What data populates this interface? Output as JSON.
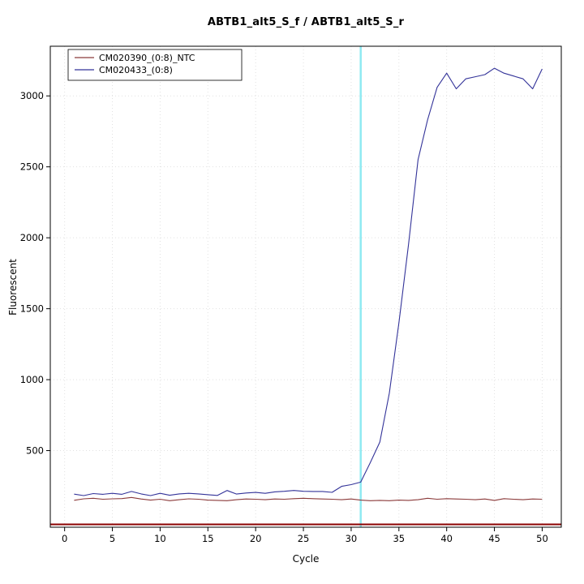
{
  "title": "ABTB1_alt5_S_f / ABTB1_alt5_S_r",
  "chart_data": {
    "type": "line",
    "title": "ABTB1_alt5_S_f / ABTB1_alt5_S_r",
    "xlabel": "Cycle",
    "ylabel": "Fluorescent",
    "xlim": [
      -1.5,
      52
    ],
    "ylim": [
      -40,
      3350
    ],
    "xticks": [
      0,
      5,
      10,
      15,
      20,
      25,
      30,
      35,
      40,
      45,
      50
    ],
    "yticks": [
      500,
      1000,
      1500,
      2000,
      2500,
      3000
    ],
    "grid": true,
    "legend_position": "top-left",
    "x": [
      1,
      2,
      3,
      4,
      5,
      6,
      7,
      8,
      9,
      10,
      11,
      12,
      13,
      14,
      15,
      16,
      17,
      18,
      19,
      20,
      21,
      22,
      23,
      24,
      25,
      26,
      27,
      28,
      29,
      30,
      31,
      32,
      33,
      34,
      35,
      36,
      37,
      38,
      39,
      40,
      41,
      42,
      43,
      44,
      45,
      46,
      47,
      48,
      49,
      50
    ],
    "series": [
      {
        "name": "CM020390_(0:8)_NTC",
        "color": "#8B3A3A",
        "values": [
          150,
          160,
          164,
          157,
          160,
          162,
          170,
          159,
          151,
          157,
          147,
          154,
          160,
          157,
          151,
          149,
          147,
          154,
          159,
          157,
          154,
          159,
          157,
          161,
          164,
          161,
          159,
          157,
          154,
          159,
          151,
          147,
          149,
          147,
          151,
          149,
          154,
          164,
          157,
          161,
          159,
          157,
          154,
          159,
          149,
          161,
          157,
          154,
          159,
          157
        ]
      },
      {
        "name": "CM020433_(0:8)",
        "color": "#333399",
        "values": [
          193,
          183,
          197,
          192,
          199,
          192,
          212,
          195,
          183,
          199,
          185,
          195,
          199,
          195,
          189,
          184,
          219,
          194,
          201,
          205,
          199,
          209,
          213,
          219,
          213,
          212,
          212,
          206,
          248,
          260,
          278,
          415,
          560,
          905,
          1400,
          1950,
          2550,
          2830,
          3060,
          3160,
          3050,
          3120,
          3135,
          3150,
          3195,
          3160,
          3140,
          3120,
          3050,
          3190
        ]
      }
    ],
    "baseline": {
      "y": -20,
      "color": "#8B0000"
    },
    "vline": {
      "x": 31,
      "color": "#8FEAF2"
    },
    "grid_color": "#e1e1e1",
    "axis_color": "#000000",
    "tick_font_size": 11.5
  }
}
